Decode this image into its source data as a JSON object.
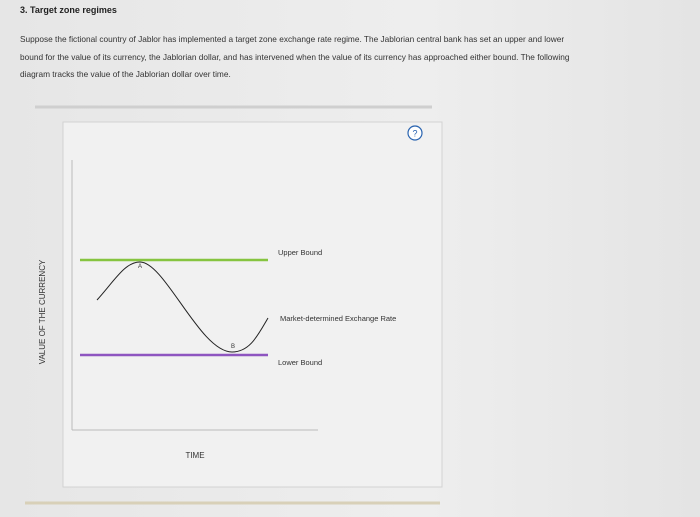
{
  "header": {
    "title": "3. Target zone regimes"
  },
  "intro": {
    "lines": [
      "Suppose the fictional country of Jablor has implemented a target zone exchange rate regime. The Jablorian central bank has set an upper and lower",
      "bound for the value of its currency, the Jablorian dollar, and has intervened when the value of its currency has approached either bound. The following",
      "diagram tracks the value of the Jablorian dollar over time."
    ]
  },
  "diagram": {
    "help": "?",
    "y_axis_label": "VALUE OF THE CURRENCY",
    "x_axis_label": "TIME",
    "lines": {
      "upper": "Upper Bound",
      "market": "Market-determined Exchange Rate",
      "lower": "Lower Bound"
    },
    "points": {
      "a": "A",
      "b": "B"
    }
  }
}
